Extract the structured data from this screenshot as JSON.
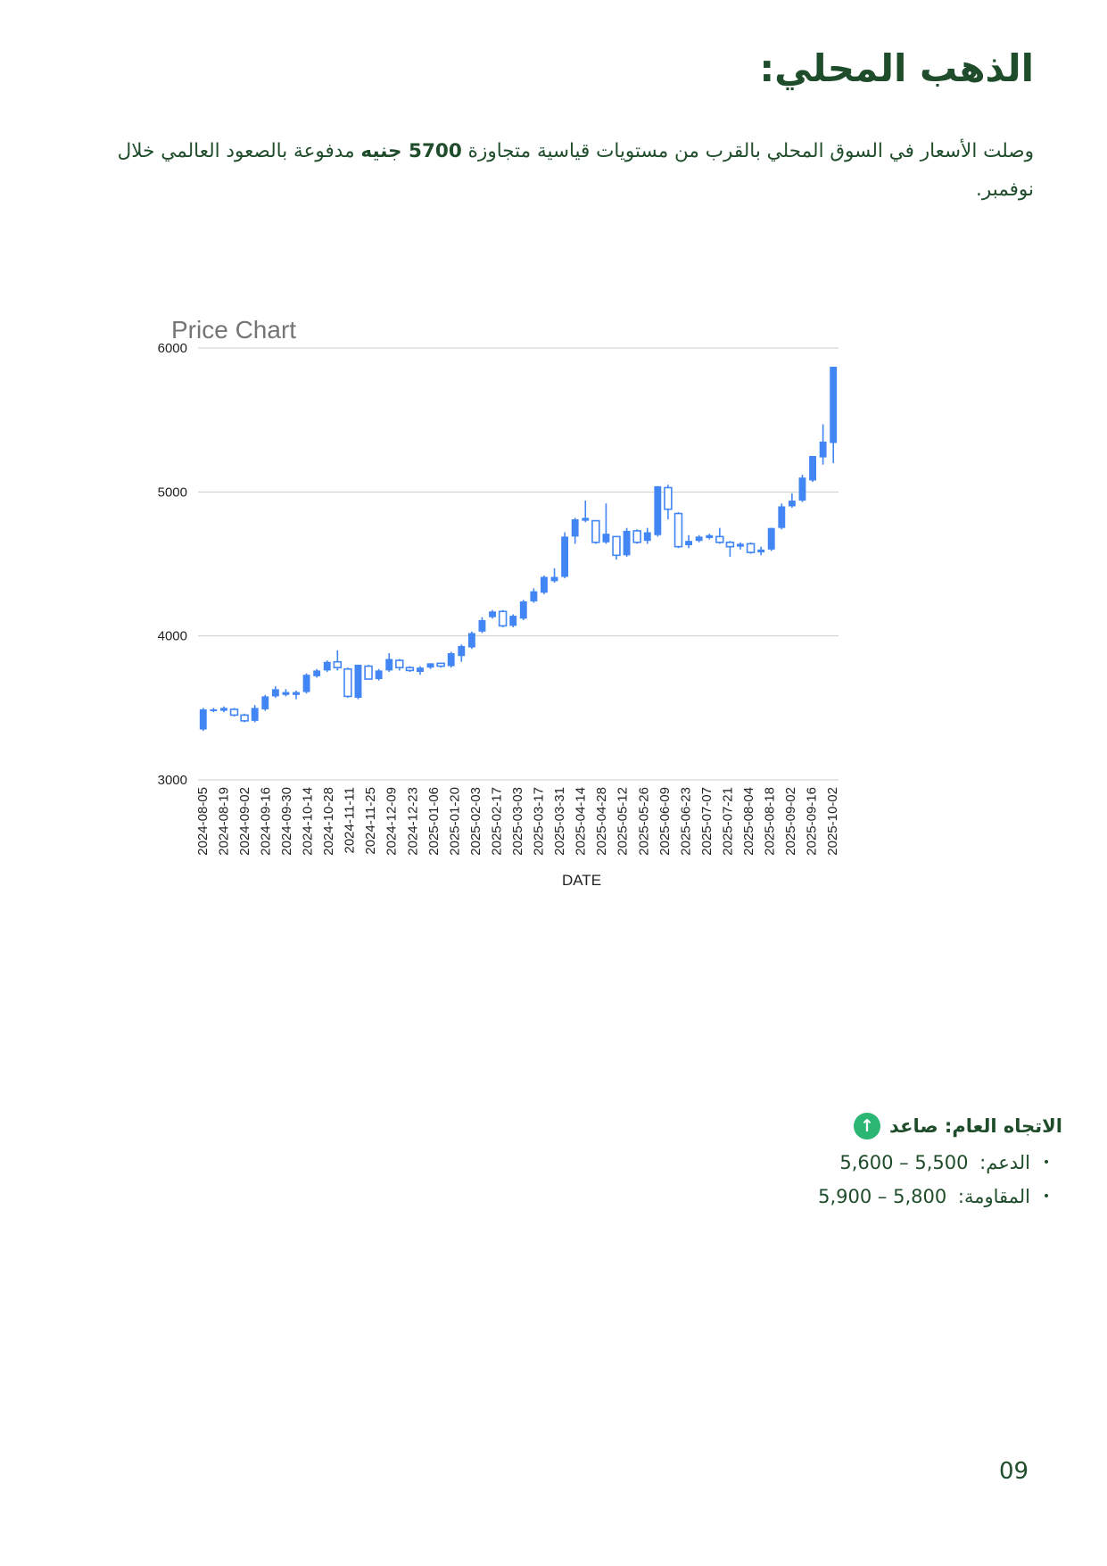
{
  "page": {
    "title": "الذهب المحلي:",
    "intro": {
      "part1": "وصلت الأسعار في السوق المحلي بالقرب من مستويات قياسية متجاوزة ",
      "bold": "5700 جنيه",
      "part2": " مدفوعة بالصعود العالمي خلال نوفمبر."
    },
    "trend": {
      "label": "الاتجاه العام: صاعد",
      "icon": "arrow-up-icon",
      "icon_color": "#2bb673"
    },
    "levels": [
      {
        "label": "الدعم: ",
        "value": "5,600 – 5,500"
      },
      {
        "label": "المقاومة: ",
        "value": "5,900 – 5,800"
      }
    ],
    "page_number": "09"
  },
  "chart_data": {
    "type": "candlestick",
    "title": "Price Chart",
    "xlabel": "DATE",
    "ylabel": "",
    "ylim": [
      3000,
      6000
    ],
    "yticks": [
      3000,
      4000,
      5000,
      6000
    ],
    "grid": true,
    "up_color": "#4285f4",
    "down_color": "#ffffff",
    "x_tick_labels": [
      "2024-08-05",
      "2024-08-19",
      "2024-09-02",
      "2024-09-16",
      "2024-09-30",
      "2024-10-14",
      "2024-10-28",
      "2024-11-11",
      "2024-11-25",
      "2024-12-09",
      "2024-12-23",
      "2025-01-06",
      "2025-01-20",
      "2025-02-03",
      "2025-02-17",
      "2025-03-03",
      "2025-03-17",
      "2025-03-31",
      "2025-04-14",
      "2025-04-28",
      "2025-05-12",
      "2025-05-26",
      "2025-06-09",
      "2025-06-23",
      "2025-07-07",
      "2025-07-21",
      "2025-08-04",
      "2025-08-18",
      "2025-09-02",
      "2025-09-16",
      "2025-10-02"
    ],
    "candles": [
      {
        "o": 3350,
        "h": 3500,
        "l": 3340,
        "c": 3490
      },
      {
        "o": 3480,
        "h": 3500,
        "l": 3470,
        "c": 3490
      },
      {
        "o": 3480,
        "h": 3510,
        "l": 3470,
        "c": 3500
      },
      {
        "o": 3490,
        "h": 3500,
        "l": 3440,
        "c": 3450
      },
      {
        "o": 3450,
        "h": 3460,
        "l": 3400,
        "c": 3410
      },
      {
        "o": 3410,
        "h": 3520,
        "l": 3400,
        "c": 3500
      },
      {
        "o": 3490,
        "h": 3590,
        "l": 3480,
        "c": 3580
      },
      {
        "o": 3580,
        "h": 3650,
        "l": 3570,
        "c": 3630
      },
      {
        "o": 3590,
        "h": 3630,
        "l": 3580,
        "c": 3610
      },
      {
        "o": 3590,
        "h": 3620,
        "l": 3560,
        "c": 3610
      },
      {
        "o": 3610,
        "h": 3740,
        "l": 3600,
        "c": 3730
      },
      {
        "o": 3720,
        "h": 3770,
        "l": 3710,
        "c": 3760
      },
      {
        "o": 3760,
        "h": 3830,
        "l": 3750,
        "c": 3820
      },
      {
        "o": 3820,
        "h": 3900,
        "l": 3760,
        "c": 3780
      },
      {
        "o": 3770,
        "h": 3780,
        "l": 3570,
        "c": 3580
      },
      {
        "o": 3570,
        "h": 3800,
        "l": 3560,
        "c": 3800
      },
      {
        "o": 3790,
        "h": 3800,
        "l": 3700,
        "c": 3700
      },
      {
        "o": 3700,
        "h": 3770,
        "l": 3690,
        "c": 3760
      },
      {
        "o": 3760,
        "h": 3880,
        "l": 3750,
        "c": 3840
      },
      {
        "o": 3830,
        "h": 3840,
        "l": 3760,
        "c": 3780
      },
      {
        "o": 3780,
        "h": 3790,
        "l": 3750,
        "c": 3760
      },
      {
        "o": 3750,
        "h": 3790,
        "l": 3730,
        "c": 3780
      },
      {
        "o": 3780,
        "h": 3810,
        "l": 3770,
        "c": 3810
      },
      {
        "o": 3810,
        "h": 3810,
        "l": 3780,
        "c": 3790
      },
      {
        "o": 3790,
        "h": 3890,
        "l": 3780,
        "c": 3880
      },
      {
        "o": 3860,
        "h": 3940,
        "l": 3820,
        "c": 3930
      },
      {
        "o": 3920,
        "h": 4030,
        "l": 3910,
        "c": 4020
      },
      {
        "o": 4030,
        "h": 4130,
        "l": 4020,
        "c": 4110
      },
      {
        "o": 4130,
        "h": 4180,
        "l": 4120,
        "c": 4170
      },
      {
        "o": 4170,
        "h": 4180,
        "l": 4060,
        "c": 4070
      },
      {
        "o": 4070,
        "h": 4150,
        "l": 4060,
        "c": 4140
      },
      {
        "o": 4120,
        "h": 4250,
        "l": 4110,
        "c": 4240
      },
      {
        "o": 4240,
        "h": 4330,
        "l": 4230,
        "c": 4310
      },
      {
        "o": 4300,
        "h": 4420,
        "l": 4290,
        "c": 4410
      },
      {
        "o": 4380,
        "h": 4470,
        "l": 4370,
        "c": 4410
      },
      {
        "o": 4410,
        "h": 4720,
        "l": 4400,
        "c": 4690
      },
      {
        "o": 4690,
        "h": 4820,
        "l": 4640,
        "c": 4810
      },
      {
        "o": 4800,
        "h": 4940,
        "l": 4790,
        "c": 4820
      },
      {
        "o": 4800,
        "h": 4800,
        "l": 4640,
        "c": 4650
      },
      {
        "o": 4650,
        "h": 4920,
        "l": 4640,
        "c": 4710
      },
      {
        "o": 4690,
        "h": 4690,
        "l": 4530,
        "c": 4560
      },
      {
        "o": 4560,
        "h": 4750,
        "l": 4550,
        "c": 4730
      },
      {
        "o": 4730,
        "h": 4740,
        "l": 4640,
        "c": 4650
      },
      {
        "o": 4660,
        "h": 4750,
        "l": 4640,
        "c": 4720
      },
      {
        "o": 4700,
        "h": 5040,
        "l": 4690,
        "c": 5040
      },
      {
        "o": 5030,
        "h": 5050,
        "l": 4810,
        "c": 4880
      },
      {
        "o": 4850,
        "h": 4860,
        "l": 4610,
        "c": 4620
      },
      {
        "o": 4630,
        "h": 4700,
        "l": 4610,
        "c": 4660
      },
      {
        "o": 4660,
        "h": 4700,
        "l": 4650,
        "c": 4690
      },
      {
        "o": 4680,
        "h": 4710,
        "l": 4670,
        "c": 4700
      },
      {
        "o": 4690,
        "h": 4750,
        "l": 4640,
        "c": 4650
      },
      {
        "o": 4650,
        "h": 4660,
        "l": 4550,
        "c": 4620
      },
      {
        "o": 4620,
        "h": 4650,
        "l": 4600,
        "c": 4640
      },
      {
        "o": 4640,
        "h": 4650,
        "l": 4570,
        "c": 4580
      },
      {
        "o": 4580,
        "h": 4620,
        "l": 4560,
        "c": 4600
      },
      {
        "o": 4600,
        "h": 4750,
        "l": 4590,
        "c": 4750
      },
      {
        "o": 4750,
        "h": 4920,
        "l": 4740,
        "c": 4900
      },
      {
        "o": 4900,
        "h": 4990,
        "l": 4890,
        "c": 4940
      },
      {
        "o": 4940,
        "h": 5120,
        "l": 4930,
        "c": 5100
      },
      {
        "o": 5080,
        "h": 5250,
        "l": 5070,
        "c": 5250
      },
      {
        "o": 5240,
        "h": 5470,
        "l": 5190,
        "c": 5350
      },
      {
        "o": 5340,
        "h": 5870,
        "l": 5200,
        "c": 5870
      }
    ]
  }
}
